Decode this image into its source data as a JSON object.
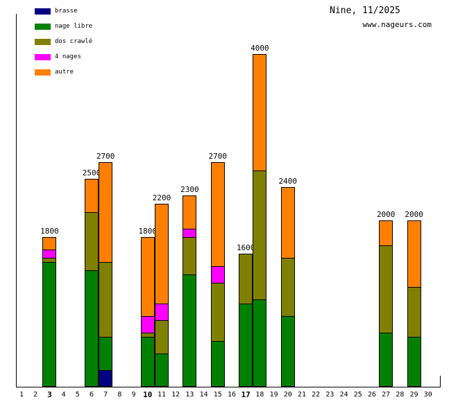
{
  "header": {
    "title": "Nine, 11/2025",
    "source": "www.nageurs.com"
  },
  "chart_data": {
    "type": "bar",
    "stacked": true,
    "title": "Nine, 11/2025",
    "source": "www.nageurs.com",
    "xlabel": "",
    "ylabel": "",
    "unit": "m",
    "ylim": [
      0,
      4000
    ],
    "grid": false,
    "legend_position": "top-left",
    "axis_color": "#000000",
    "x_categories": [
      1,
      2,
      3,
      4,
      5,
      6,
      7,
      8,
      9,
      10,
      11,
      12,
      13,
      14,
      15,
      16,
      17,
      18,
      19,
      20,
      21,
      22,
      23,
      24,
      25,
      26,
      27,
      28,
      29,
      30
    ],
    "bold_x_labels": [
      3,
      10,
      17
    ],
    "series_order_bottom_to_top": [
      "brasse",
      "nage libre",
      "dos crawlé",
      "4 nages",
      "autre"
    ],
    "legend": [
      {
        "label": "brasse",
        "color": "#000080"
      },
      {
        "label": "nage libre",
        "color": "#008000"
      },
      {
        "label": "dos crawlé",
        "color": "#808000"
      },
      {
        "label": "4 nages",
        "color": "#FF00FF"
      },
      {
        "label": "autre",
        "color": "#FF8000"
      }
    ],
    "bars": [
      {
        "day": 3,
        "total": 1800,
        "segments": [
          {
            "series": "nage libre",
            "value": 1500
          },
          {
            "series": "dos crawlé",
            "value": 50
          },
          {
            "series": "4 nages",
            "value": 100
          },
          {
            "series": "autre",
            "value": 150
          }
        ]
      },
      {
        "day": 6,
        "total": 2500,
        "segments": [
          {
            "series": "nage libre",
            "value": 1400
          },
          {
            "series": "dos crawlé",
            "value": 700
          },
          {
            "series": "autre",
            "value": 400
          }
        ]
      },
      {
        "day": 7,
        "total": 2700,
        "segments": [
          {
            "series": "brasse",
            "value": 200
          },
          {
            "series": "nage libre",
            "value": 400
          },
          {
            "series": "dos crawlé",
            "value": 900
          },
          {
            "series": "autre",
            "value": 1200
          }
        ]
      },
      {
        "day": 10,
        "total": 1800,
        "segments": [
          {
            "series": "nage libre",
            "value": 600
          },
          {
            "series": "dos crawlé",
            "value": 50
          },
          {
            "series": "4 nages",
            "value": 200
          },
          {
            "series": "autre",
            "value": 950
          }
        ]
      },
      {
        "day": 11,
        "total": 2200,
        "segments": [
          {
            "series": "nage libre",
            "value": 400
          },
          {
            "series": "dos crawlé",
            "value": 400
          },
          {
            "series": "4 nages",
            "value": 200
          },
          {
            "series": "autre",
            "value": 1200
          }
        ]
      },
      {
        "day": 13,
        "total": 2300,
        "segments": [
          {
            "series": "nage libre",
            "value": 1350
          },
          {
            "series": "dos crawlé",
            "value": 450
          },
          {
            "series": "4 nages",
            "value": 100
          },
          {
            "series": "autre",
            "value": 400
          }
        ]
      },
      {
        "day": 15,
        "total": 2700,
        "segments": [
          {
            "series": "nage libre",
            "value": 550
          },
          {
            "series": "dos crawlé",
            "value": 700
          },
          {
            "series": "4 nages",
            "value": 200
          },
          {
            "series": "autre",
            "value": 1250
          }
        ]
      },
      {
        "day": 17,
        "total": 1600,
        "segments": [
          {
            "series": "nage libre",
            "value": 1000
          },
          {
            "series": "dos crawlé",
            "value": 600
          }
        ]
      },
      {
        "day": 18,
        "total": 4000,
        "segments": [
          {
            "series": "nage libre",
            "value": 1050
          },
          {
            "series": "dos crawlé",
            "value": 1550
          },
          {
            "series": "autre",
            "value": 1400
          }
        ]
      },
      {
        "day": 20,
        "total": 2400,
        "segments": [
          {
            "series": "nage libre",
            "value": 850
          },
          {
            "series": "dos crawlé",
            "value": 700
          },
          {
            "series": "autre",
            "value": 850
          }
        ]
      },
      {
        "day": 27,
        "total": 2000,
        "segments": [
          {
            "series": "nage libre",
            "value": 650
          },
          {
            "series": "dos crawlé",
            "value": 1050
          },
          {
            "series": "autre",
            "value": 300
          }
        ]
      },
      {
        "day": 29,
        "total": 2000,
        "segments": [
          {
            "series": "nage libre",
            "value": 600
          },
          {
            "series": "dos crawlé",
            "value": 600
          },
          {
            "series": "autre",
            "value": 800
          }
        ]
      }
    ]
  }
}
